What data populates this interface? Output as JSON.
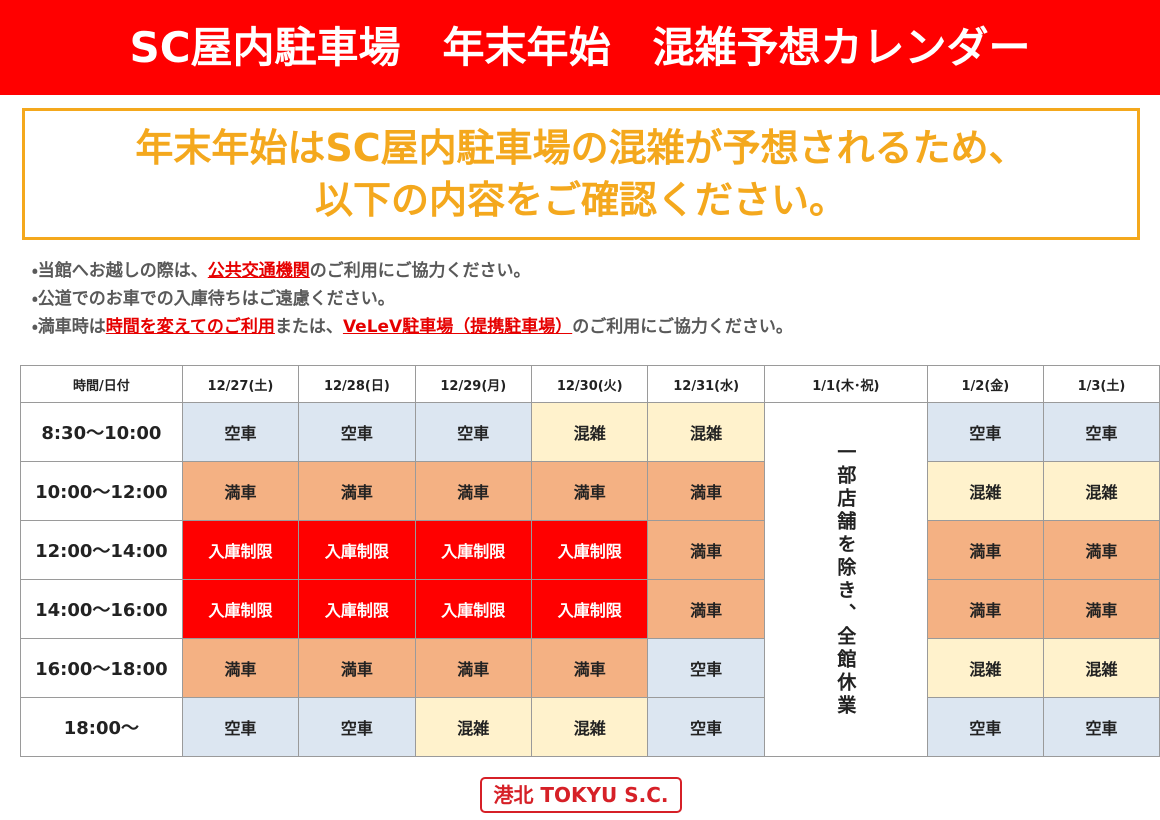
{
  "header": {
    "title": "SC屋内駐車場　年末年始　混雑予想カレンダー"
  },
  "notice": {
    "lines": [
      "年末年始はSC屋内駐車場の混雑が予想されるため、",
      "以下の内容をご確認ください。"
    ]
  },
  "notes": [
    [
      {
        "text": "・当館へお越しの際は、",
        "highlight": false
      },
      {
        "text": "公共交通機関",
        "highlight": true
      },
      {
        "text": "のご利用にご協力ください。",
        "highlight": false
      }
    ],
    [
      {
        "text": "・公道でのお車での入庫待ちはご遠慮ください。",
        "highlight": false
      }
    ],
    [
      {
        "text": "・満車時は",
        "highlight": false
      },
      {
        "text": "時間を変えてのご利用",
        "highlight": true
      },
      {
        "text": "または、",
        "highlight": false
      },
      {
        "text": "VeLeV駐車場（提携駐車場）",
        "highlight": true
      },
      {
        "text": "のご利用にご協力ください。",
        "highlight": false
      }
    ]
  ],
  "table": {
    "columns": [
      "時間/日付",
      "12/27(土)",
      "12/28(日)",
      "12/29(月)",
      "12/30(火)",
      "12/31(水)",
      "1/1(木･祝)",
      "1/2(金)",
      "1/3(土)"
    ],
    "closed_column": 6,
    "closed_text": "一部店舗を除き、全館休業",
    "rows": [
      [
        "8:30～10:00",
        "空車",
        "空車",
        "空車",
        "混雑",
        "混雑",
        "空車",
        "空車"
      ],
      [
        "10:00～12:00",
        "満車",
        "満車",
        "満車",
        "満車",
        "満車",
        "混雑",
        "混雑"
      ],
      [
        "12:00～14:00",
        "入庫制限",
        "入庫制限",
        "入庫制限",
        "入庫制限",
        "満車",
        "満車",
        "満車"
      ],
      [
        "14:00～16:00",
        "入庫制限",
        "入庫制限",
        "入庫制限",
        "入庫制限",
        "満車",
        "満車",
        "満車"
      ],
      [
        "16:00～18:00",
        "満車",
        "満車",
        "満車",
        "満車",
        "空車",
        "混雑",
        "混雑"
      ],
      [
        "18:00～",
        "空車",
        "空車",
        "混雑",
        "混雑",
        "空車",
        "空車",
        "空車"
      ]
    ],
    "status_colors": {
      "空車": "#dce6f1",
      "混雑": "#fff2cc",
      "満車": "#f4b183",
      "入庫制限": "#ff0000"
    }
  },
  "logo": {
    "text": "港北 TOKYU S.C."
  }
}
